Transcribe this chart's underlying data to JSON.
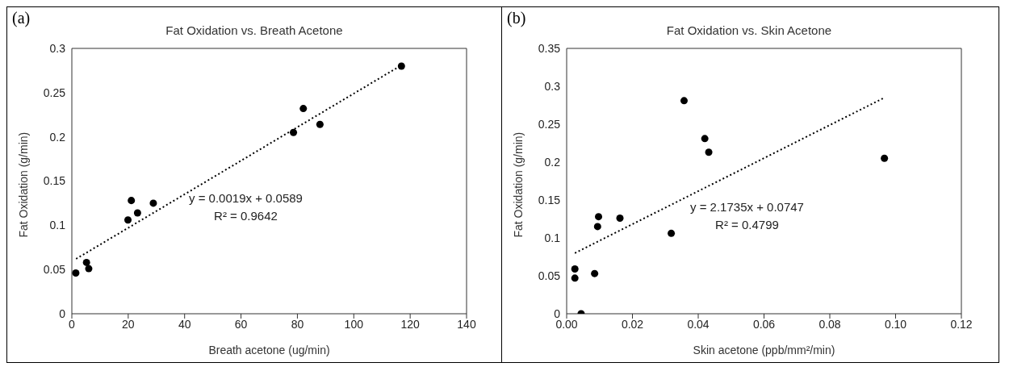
{
  "chart_data": [
    {
      "type": "scatter",
      "title": "Fat Oxidation vs. Breath Acetone",
      "xlabel": "Breath acetone (ug/min)",
      "ylabel": "Fat Oxidation (g/min)",
      "annotations": [
        "(a)",
        "y = 0.0019x + 0.0589",
        "R² = 0.9642"
      ],
      "xlim": [
        0,
        140
      ],
      "xticks": [
        0,
        20,
        40,
        60,
        80,
        100,
        120,
        140
      ],
      "ylim": [
        0,
        0.3
      ],
      "yticks": [
        0,
        0.05,
        0.1,
        0.15,
        0.2,
        0.25,
        0.3
      ],
      "grid": false,
      "legend": false,
      "marker": "circle",
      "series": [
        {
          "color": "#000000",
          "x": [
            1.4,
            5.2,
            6.0,
            19.9,
            21.1,
            23.3,
            28.9,
            78.6,
            82.1,
            88.0,
            116.9
          ],
          "values": [
            0.046,
            0.058,
            0.051,
            0.106,
            0.128,
            0.114,
            0.125,
            0.205,
            0.232,
            0.214,
            0.28
          ]
        },
        {
          "type": "line",
          "color": "#000000",
          "line_style": "dotted",
          "marker": "none",
          "x": [
            1.5,
            116.9
          ],
          "values": [
            0.062,
            0.281
          ]
        }
      ]
    },
    {
      "type": "scatter",
      "title": "Fat Oxidation vs. Skin Acetone",
      "xlabel": "Skin acetone (ppb/mm²/min)",
      "ylabel": "Fat Oxidation (g/min)",
      "annotations": [
        "(b)",
        "y = 2.1735x + 0.0747",
        "R² = 0.4799"
      ],
      "xlim": [
        0,
        0.12
      ],
      "xticks": [
        {
          "value": 0,
          "label": "0.00"
        },
        {
          "value": 0.02,
          "label": "0.02"
        },
        {
          "value": 0.04,
          "label": "0.04"
        },
        {
          "value": 0.06,
          "label": "0.06"
        },
        {
          "value": 0.08,
          "label": "0.08"
        },
        {
          "value": 0.1,
          "label": "0.10"
        },
        {
          "value": 0.12,
          "label": "0.12"
        }
      ],
      "ylim": [
        0,
        0.35
      ],
      "yticks": [
        0,
        0.05,
        0.1,
        0.15,
        0.2,
        0.25,
        0.3,
        0.35
      ],
      "grid": false,
      "legend": false,
      "marker": "circle",
      "series": [
        {
          "color": "#000000",
          "x": [
            0.0025,
            0.0025,
            0.0044,
            0.0085,
            0.0094,
            0.0097,
            0.0162,
            0.0318,
            0.0357,
            0.042,
            0.0432,
            0.0966
          ],
          "values": [
            0.047,
            0.059,
            0.0,
            0.053,
            0.115,
            0.128,
            0.126,
            0.106,
            0.281,
            0.231,
            0.213,
            0.205
          ]
        },
        {
          "type": "line",
          "color": "#000000",
          "line_style": "dotted",
          "marker": "none",
          "x": [
            0.0025,
            0.0966
          ],
          "values": [
            0.08,
            0.285
          ]
        }
      ]
    }
  ]
}
